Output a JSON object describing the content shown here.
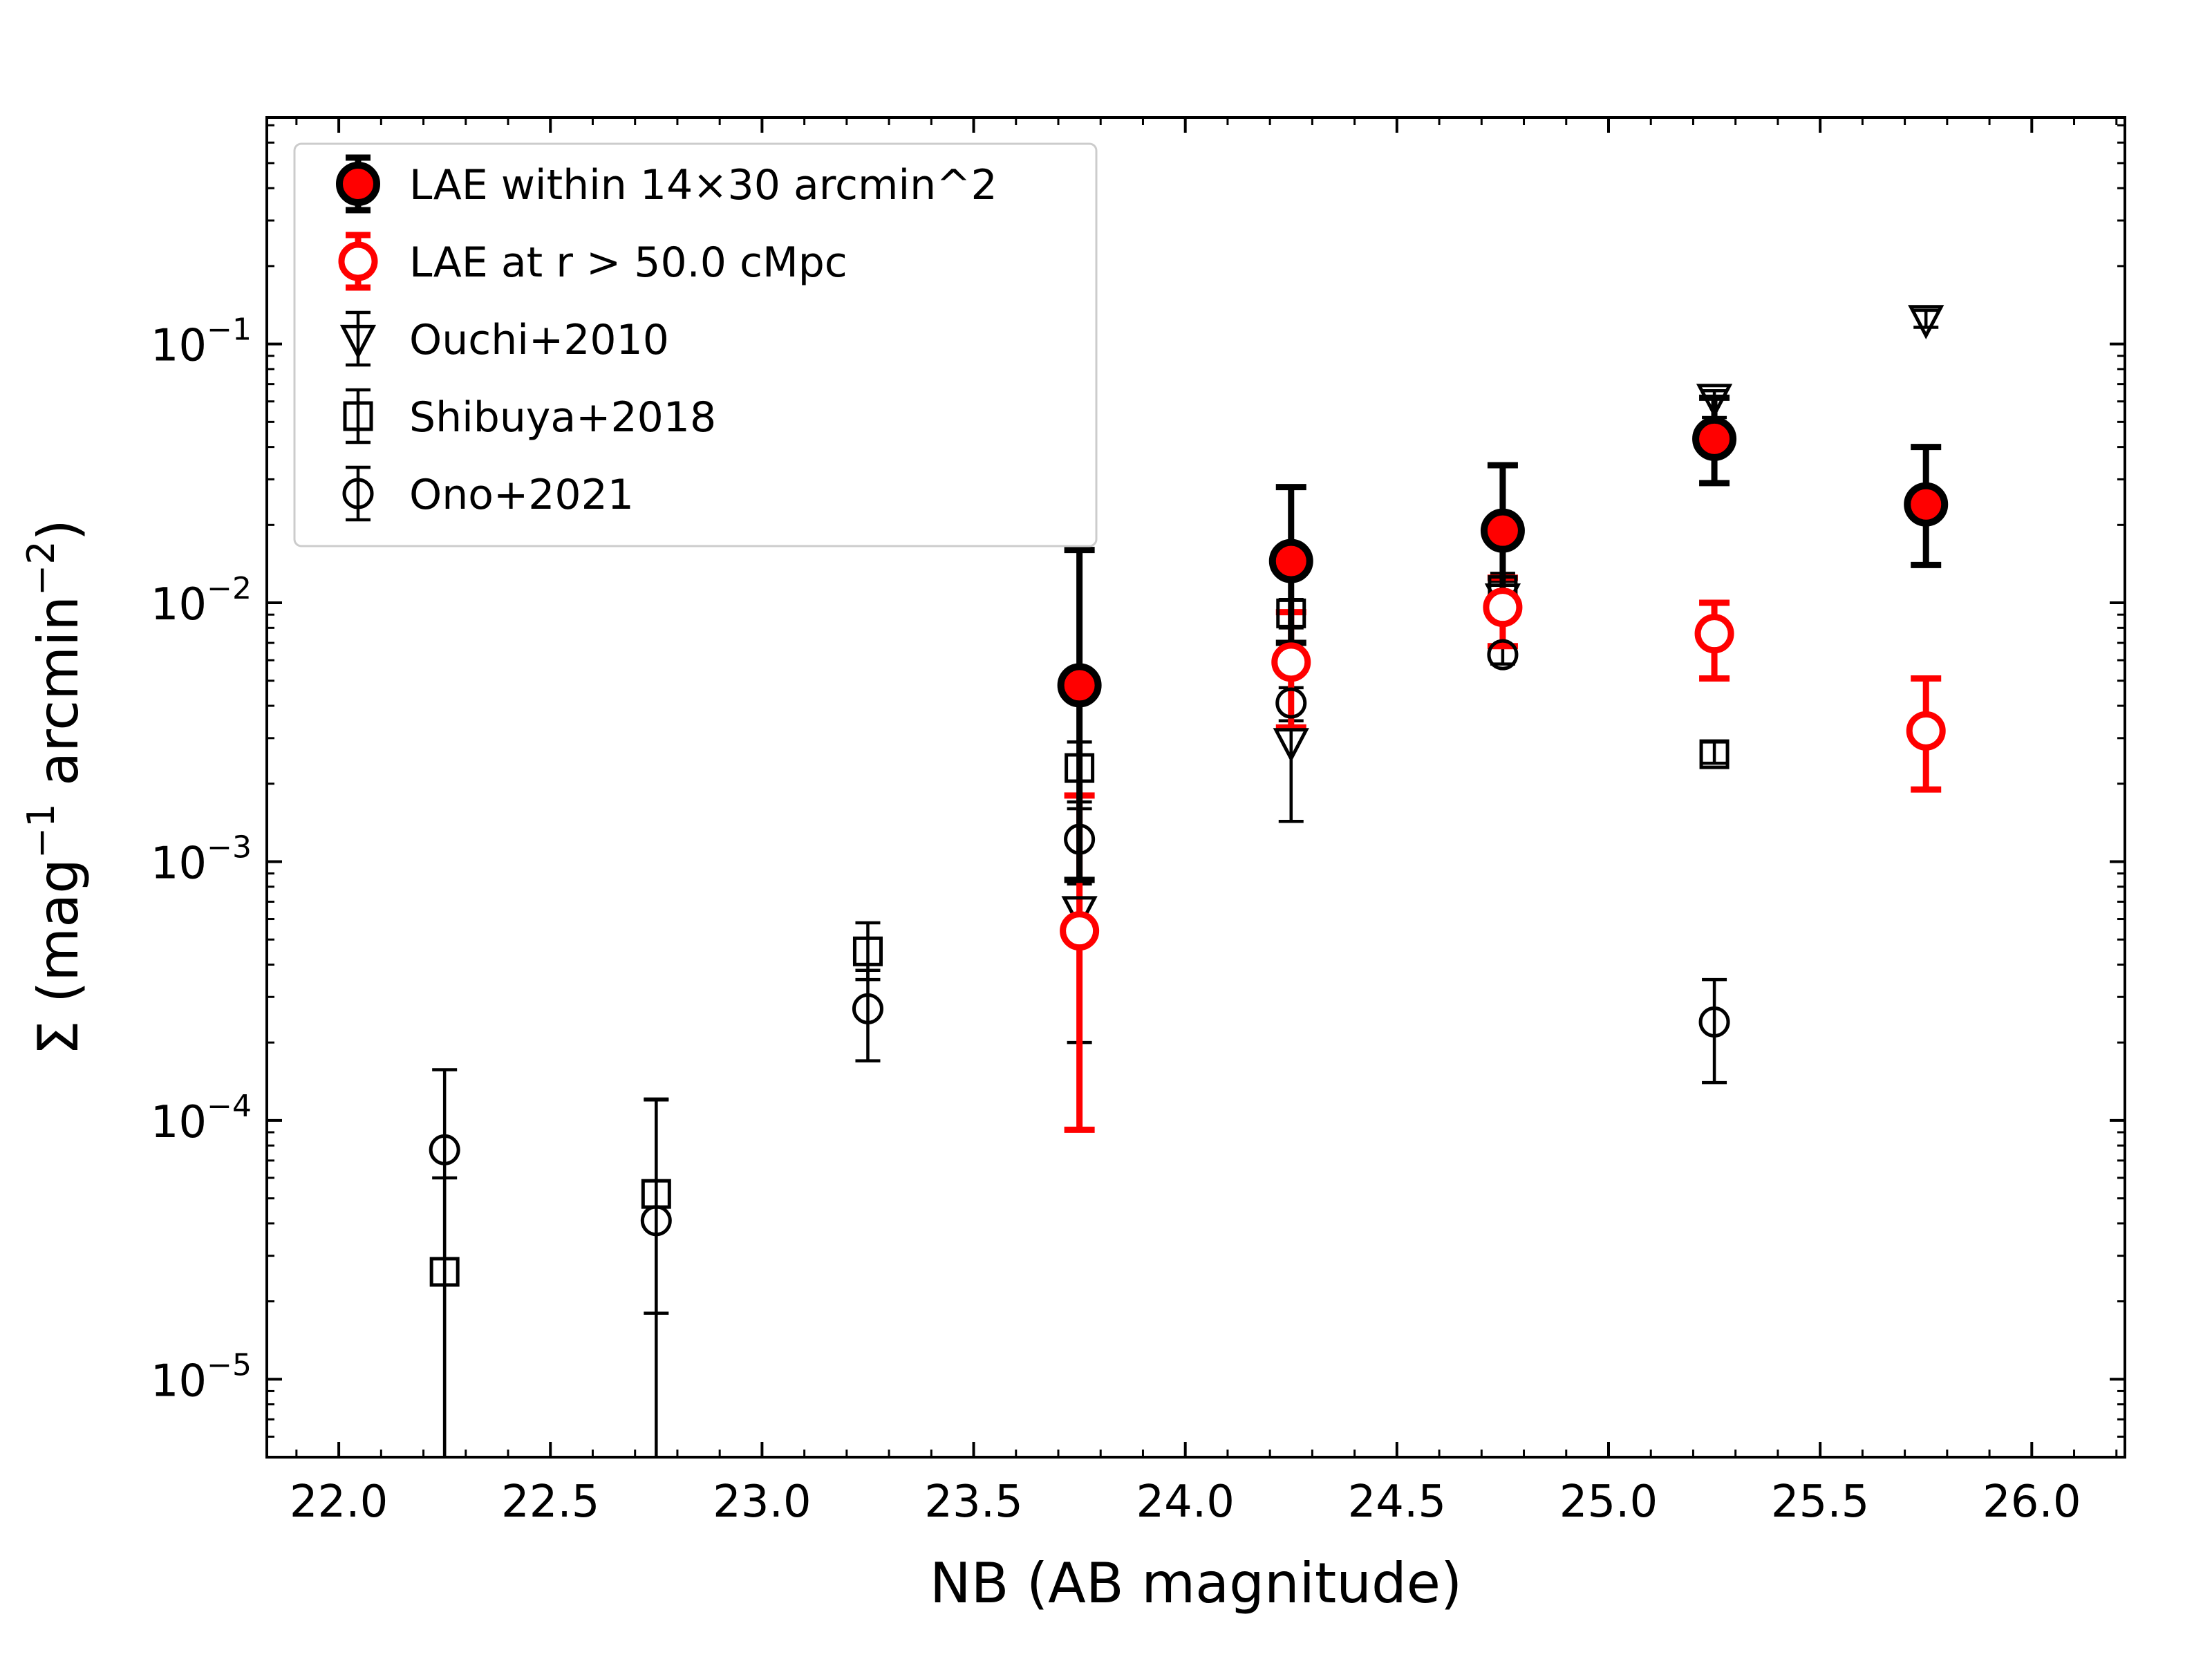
{
  "chart_data": {
    "type": "scatter",
    "title": "",
    "xlabel": "NB (AB magnitude)",
    "ylabel": {
      "prefix": "Σ (mag",
      "sup1": "−1",
      "middle": " arcmin",
      "sup2": "−2",
      "suffix": ")"
    },
    "xlim": [
      21.83,
      26.22
    ],
    "ylim": [
      5e-06,
      0.75
    ],
    "yscale": "log",
    "xticks": [
      "22.0",
      "22.5",
      "23.0",
      "23.5",
      "24.0",
      "24.5",
      "25.0",
      "25.5",
      "26.0"
    ],
    "yticks": [
      {
        "value": 1e-05,
        "exp": "−5"
      },
      {
        "value": 0.0001,
        "exp": "−4"
      },
      {
        "value": 0.001,
        "exp": "−3"
      },
      {
        "value": 0.01,
        "exp": "−2"
      },
      {
        "value": 0.1,
        "exp": "−1"
      }
    ],
    "legend_position": "upper-left",
    "series": [
      {
        "name": "LAE within 14×30 arcmin^2",
        "marker": "filled-circle",
        "color": "#ff0000",
        "edge": "#000000",
        "errcolor": "#000000",
        "points": [
          {
            "x": 23.75,
            "y": 0.0048,
            "lo": 0.00085,
            "hi": 0.016
          },
          {
            "x": 24.25,
            "y": 0.0145,
            "lo": 0.007,
            "hi": 0.028
          },
          {
            "x": 24.75,
            "y": 0.019,
            "lo": 0.0105,
            "hi": 0.034
          },
          {
            "x": 25.25,
            "y": 0.043,
            "lo": 0.029,
            "hi": 0.062
          },
          {
            "x": 25.75,
            "y": 0.024,
            "lo": 0.014,
            "hi": 0.04
          }
        ]
      },
      {
        "name": "LAE at r > 50.0 cMpc",
        "marker": "open-circle",
        "color": "#ff0000",
        "edge": "#ff0000",
        "errcolor": "#ff0000",
        "points": [
          {
            "x": 23.75,
            "y": 0.00054,
            "lo": 9.2e-05,
            "hi": 0.0018
          },
          {
            "x": 24.25,
            "y": 0.0059,
            "lo": 0.0033,
            "hi": 0.0092
          },
          {
            "x": 24.75,
            "y": 0.0096,
            "lo": 0.0068,
            "hi": 0.0125
          },
          {
            "x": 25.25,
            "y": 0.0076,
            "lo": 0.0051,
            "hi": 0.01
          },
          {
            "x": 25.75,
            "y": 0.0032,
            "lo": 0.0019,
            "hi": 0.0051
          }
        ]
      },
      {
        "name": "Ouchi+2010",
        "marker": "down-triangle",
        "color": "none",
        "edge": "#000000",
        "errcolor": "#000000",
        "points": [
          {
            "x": 23.75,
            "y": 0.00065,
            "lo": 0.0002,
            "hi": 0.0018
          },
          {
            "x": 24.25,
            "y": 0.0029,
            "lo": 0.00143,
            "hi": 0.0058
          },
          {
            "x": 24.75,
            "y": 0.0105,
            "lo": 0.0085,
            "hi": 0.013
          },
          {
            "x": 25.25,
            "y": 0.062,
            "lo": 0.052,
            "hi": 0.066
          },
          {
            "x": 25.75,
            "y": 0.125,
            "lo": 0.116,
            "hi": 0.135
          }
        ]
      },
      {
        "name": "Shibuya+2018",
        "marker": "open-square",
        "color": "none",
        "edge": "#000000",
        "errcolor": "#000000",
        "points": [
          {
            "x": 22.25,
            "y": 2.6e-05,
            "lo": 5e-06,
            "hi": 6e-05
          },
          {
            "x": 22.75,
            "y": 5.2e-05,
            "lo": 1.8e-05,
            "hi": 0.00012
          },
          {
            "x": 23.25,
            "y": 0.00045,
            "lo": 0.00035,
            "hi": 0.00058
          },
          {
            "x": 23.75,
            "y": 0.0023,
            "lo": 0.0017,
            "hi": 0.0029
          },
          {
            "x": 24.25,
            "y": 0.0091,
            "lo": 0.008,
            "hi": 0.0103
          },
          {
            "x": 24.75,
            "y": 0.0112,
            "lo": 0.0103,
            "hi": 0.0121
          },
          {
            "x": 25.25,
            "y": 0.0026,
            "lo": 0.0024,
            "hi": 0.0029
          }
        ]
      },
      {
        "name": "Ono+2021",
        "marker": "open-circle",
        "color": "none",
        "edge": "#000000",
        "errcolor": "#000000",
        "points": [
          {
            "x": 22.25,
            "y": 7.7e-05,
            "lo": 5e-06,
            "hi": 0.000157
          },
          {
            "x": 22.75,
            "y": 4.1e-05,
            "lo": 5e-06,
            "hi": 0.000121
          },
          {
            "x": 23.25,
            "y": 0.00027,
            "lo": 0.00017,
            "hi": 0.00038
          },
          {
            "x": 23.75,
            "y": 0.00122,
            "lo": 0.00082,
            "hi": 0.0016
          },
          {
            "x": 24.25,
            "y": 0.0041,
            "lo": 0.0035,
            "hi": 0.0047
          },
          {
            "x": 24.75,
            "y": 0.0063,
            "lo": 0.0058,
            "hi": 0.0068
          },
          {
            "x": 25.25,
            "y": 0.00024,
            "lo": 0.00014,
            "hi": 0.00035
          }
        ]
      }
    ]
  }
}
